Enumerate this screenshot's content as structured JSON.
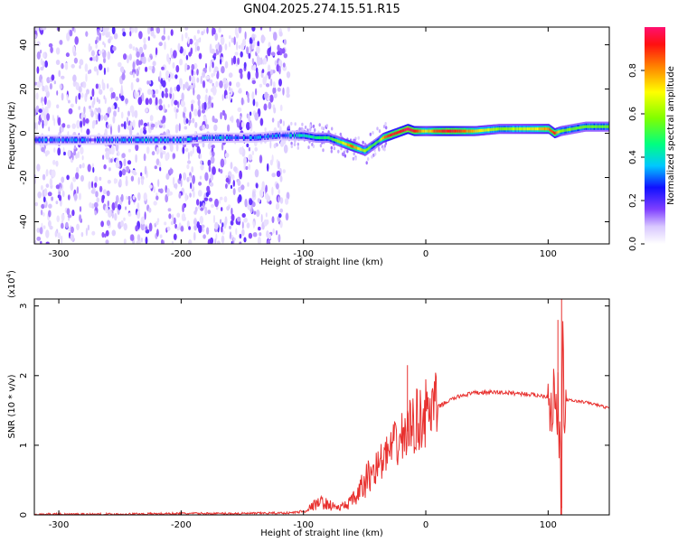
{
  "title": "GN04.2025.274.15.51.R15",
  "chart_data": [
    {
      "type": "heatmap",
      "xlabel": "Height of straight line (km)",
      "ylabel": "Frequency (Hz)",
      "xlim": [
        -320,
        150
      ],
      "ylim": [
        -50,
        48
      ],
      "x_ticks": [
        -300,
        -200,
        -100,
        0,
        100
      ],
      "y_ticks": [
        -40,
        -20,
        0,
        20,
        40
      ],
      "colorbar": {
        "label": "Normalized spectral amplitude",
        "range": [
          0,
          1
        ],
        "ticks": [
          "0.0",
          "0.2",
          "0.4",
          "0.6",
          "0.8"
        ]
      },
      "ridge": {
        "x": [
          -320,
          -300,
          -280,
          -260,
          -240,
          -220,
          -200,
          -180,
          -160,
          -140,
          -120,
          -110,
          -100,
          -90,
          -80,
          -75,
          -70,
          -65,
          -60,
          -55,
          -50,
          -45,
          -40,
          -35,
          -30,
          -25,
          -20,
          -15,
          -10,
          -5,
          0,
          10,
          20,
          40,
          60,
          80,
          100,
          105,
          110,
          120,
          130,
          150
        ],
        "freq": [
          -3,
          -3,
          -3,
          -3,
          -3,
          -3,
          -3,
          -2,
          -2,
          -2,
          -1,
          -1,
          -1,
          -2,
          -2,
          -3,
          -4,
          -5,
          -6,
          -7,
          -8,
          -6,
          -4,
          -2,
          -1,
          0,
          1,
          2,
          1,
          1,
          1,
          1,
          1,
          1,
          2,
          2,
          2,
          0,
          1,
          2,
          3,
          3
        ],
        "amplitude": [
          0.25,
          0.28,
          0.25,
          0.28,
          0.3,
          0.32,
          0.3,
          0.3,
          0.3,
          0.3,
          0.3,
          0.35,
          0.4,
          0.45,
          0.5,
          0.55,
          0.6,
          0.75,
          0.85,
          0.7,
          0.6,
          0.55,
          0.5,
          0.8,
          0.95,
          0.9,
          0.95,
          1.0,
          0.95,
          0.8,
          0.7,
          0.9,
          0.95,
          0.75,
          0.6,
          0.65,
          0.8,
          0.9,
          0.6,
          0.55,
          0.55,
          0.55
        ]
      }
    },
    {
      "type": "line",
      "xlabel": "Height of straight line (km)",
      "ylabel": "SNR (10 * v/v)",
      "y_multiplier": "(x10",
      "y_multiplier_exp": "4",
      "xlim": [
        -320,
        150
      ],
      "ylim": [
        0,
        3.1
      ],
      "x_ticks": [
        -300,
        -200,
        -100,
        0,
        100
      ],
      "y_ticks": [
        0,
        1,
        2,
        3
      ],
      "series": [
        {
          "color": "#e8312f",
          "x": [
            -320,
            -300,
            -250,
            -200,
            -150,
            -110,
            -100,
            -95,
            -90,
            -85,
            -80,
            -75,
            -70,
            -65,
            -60,
            -55,
            -50,
            -45,
            -40,
            -35,
            -30,
            -25,
            -20,
            -15,
            -10,
            -5,
            0,
            5,
            10,
            20,
            30,
            40,
            50,
            60,
            70,
            80,
            90,
            100,
            105,
            108,
            110,
            111,
            112,
            113,
            115,
            120,
            130,
            140,
            150
          ],
          "y": [
            0.01,
            0.01,
            0.01,
            0.02,
            0.02,
            0.03,
            0.05,
            0.1,
            0.15,
            0.18,
            0.15,
            0.12,
            0.1,
            0.15,
            0.2,
            0.3,
            0.45,
            0.6,
            0.7,
            0.8,
            0.9,
            1.0,
            1.1,
            1.2,
            1.3,
            1.4,
            1.45,
            1.5,
            1.55,
            1.65,
            1.72,
            1.75,
            1.76,
            1.76,
            1.75,
            1.74,
            1.72,
            1.7,
            1.65,
            1.5,
            0.5,
            0.1,
            2.8,
            1.2,
            1.65,
            1.64,
            1.62,
            1.58,
            1.53
          ]
        }
      ],
      "spikes": [
        {
          "x": -15,
          "y": 2.15
        },
        {
          "x": 108,
          "y": 2.8
        },
        {
          "x": 111,
          "y": 3.1
        },
        {
          "x": 111,
          "y": 0.12
        }
      ]
    }
  ]
}
